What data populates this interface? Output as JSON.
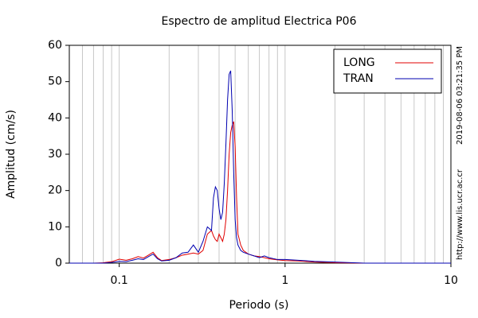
{
  "chart_data": {
    "type": "line",
    "title": "Espectro de amplitud Electrica P06",
    "xlabel": "Periodo (s)",
    "ylabel": "Amplitud (cm/s)",
    "timestamp": "2019-08-06 03:21:35 PM",
    "source": "http://www.lis.ucr.ac.cr",
    "xscale": "log",
    "xlim": [
      0.05,
      10
    ],
    "ylim": [
      0,
      60
    ],
    "xticks": [
      0.1,
      1,
      10
    ],
    "xgrid_minor": [
      0.06,
      0.07,
      0.08,
      0.09,
      0.2,
      0.3,
      0.4,
      0.5,
      0.6,
      0.7,
      0.8,
      0.9,
      2,
      3,
      4,
      5,
      6,
      7,
      8,
      9
    ],
    "yticks": [
      0,
      10,
      20,
      30,
      40,
      50,
      60
    ],
    "grid": true,
    "legend": "upper right",
    "x": [
      0.05,
      0.06,
      0.07,
      0.08,
      0.09,
      0.1,
      0.11,
      0.12,
      0.13,
      0.14,
      0.15,
      0.16,
      0.17,
      0.18,
      0.2,
      0.22,
      0.24,
      0.26,
      0.28,
      0.3,
      0.32,
      0.34,
      0.36,
      0.37,
      0.38,
      0.39,
      0.4,
      0.41,
      0.42,
      0.43,
      0.44,
      0.45,
      0.46,
      0.47,
      0.48,
      0.49,
      0.5,
      0.51,
      0.52,
      0.54,
      0.56,
      0.6,
      0.65,
      0.7,
      0.75,
      0.8,
      0.9,
      1,
      1.2,
      1.5,
      2,
      3,
      5,
      10
    ],
    "series": [
      {
        "name": "LONG",
        "color": "#e00000",
        "values": [
          0,
          0,
          0,
          0.1,
          0.4,
          1.1,
          0.8,
          1.2,
          1.8,
          1.4,
          2.2,
          3,
          1.5,
          0.7,
          1,
          1.5,
          2.2,
          2.5,
          2.8,
          2.5,
          3.5,
          8,
          9,
          7.5,
          6.5,
          6,
          8,
          7,
          6,
          8,
          12,
          20,
          30,
          36,
          38,
          39,
          32,
          18,
          8,
          5,
          3.5,
          2.5,
          2,
          1.8,
          1.5,
          1.2,
          0.9,
          0.7,
          0.6,
          0.3,
          0.1,
          0,
          0,
          0
        ]
      },
      {
        "name": "TRAN",
        "color": "#0000b0",
        "values": [
          0,
          0,
          0,
          0,
          0.2,
          0.5,
          0.4,
          0.8,
          1.2,
          1,
          1.8,
          2.5,
          1.2,
          0.6,
          0.8,
          1.5,
          2.8,
          3,
          5,
          3,
          6,
          10,
          9,
          18,
          21,
          20,
          15,
          12,
          14,
          22,
          33,
          45,
          52,
          53,
          42,
          25,
          12,
          7,
          5,
          3.5,
          3,
          2.5,
          2,
          1.5,
          2,
          1.5,
          1,
          1,
          0.8,
          0.5,
          0.3,
          0,
          0,
          0
        ]
      }
    ]
  }
}
